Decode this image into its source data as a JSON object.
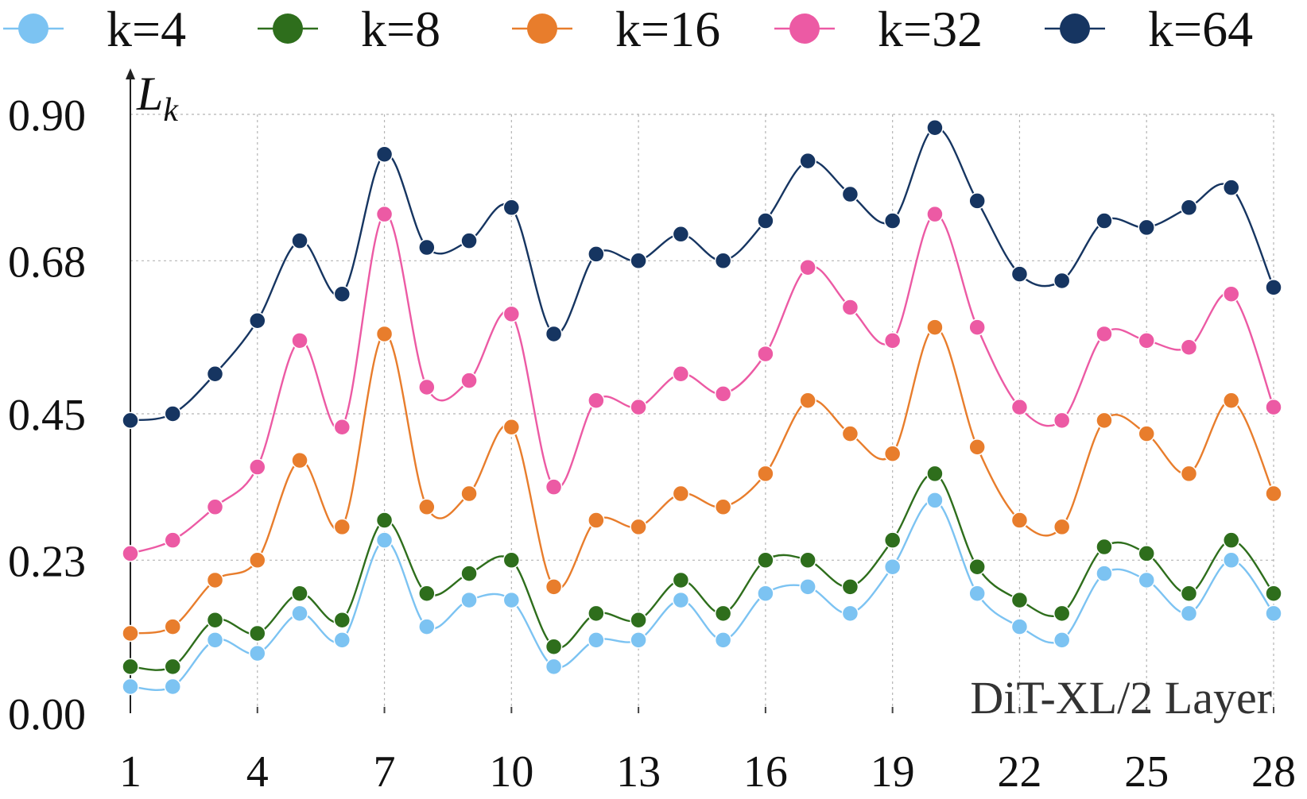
{
  "chart_data": {
    "type": "line",
    "title": "",
    "xlabel": "DiT-XL/2 Layer",
    "ylabel": "L",
    "ylabel_subscript": "k",
    "x": [
      1,
      2,
      3,
      4,
      5,
      6,
      7,
      8,
      9,
      10,
      11,
      12,
      13,
      14,
      15,
      16,
      17,
      18,
      19,
      20,
      21,
      22,
      23,
      24,
      25,
      26,
      27,
      28
    ],
    "x_ticks": [
      "1",
      "4",
      "7",
      "10",
      "13",
      "16",
      "19",
      "22",
      "25",
      "28"
    ],
    "y_ticks": [
      "0.00",
      "0.23",
      "0.45",
      "0.68",
      "0.90"
    ],
    "xlim": [
      1,
      28
    ],
    "ylim": [
      0,
      0.9
    ],
    "grid": true,
    "legend_position": "top",
    "series": [
      {
        "name": "k=4",
        "color": "#7cc3f2",
        "values": [
          0.04,
          0.04,
          0.11,
          0.09,
          0.15,
          0.11,
          0.26,
          0.13,
          0.17,
          0.17,
          0.07,
          0.11,
          0.11,
          0.17,
          0.11,
          0.18,
          0.19,
          0.15,
          0.22,
          0.32,
          0.18,
          0.13,
          0.11,
          0.21,
          0.2,
          0.15,
          0.23,
          0.15
        ]
      },
      {
        "name": "k=8",
        "color": "#2e6e1c",
        "values": [
          0.07,
          0.07,
          0.14,
          0.12,
          0.18,
          0.14,
          0.29,
          0.18,
          0.21,
          0.23,
          0.1,
          0.15,
          0.14,
          0.2,
          0.15,
          0.23,
          0.23,
          0.19,
          0.26,
          0.36,
          0.22,
          0.17,
          0.15,
          0.25,
          0.24,
          0.18,
          0.26,
          0.18
        ]
      },
      {
        "name": "k=16",
        "color": "#e87d2c",
        "values": [
          0.12,
          0.13,
          0.2,
          0.23,
          0.38,
          0.28,
          0.57,
          0.31,
          0.33,
          0.43,
          0.19,
          0.29,
          0.28,
          0.33,
          0.31,
          0.36,
          0.47,
          0.42,
          0.39,
          0.58,
          0.4,
          0.29,
          0.28,
          0.44,
          0.42,
          0.36,
          0.47,
          0.33
        ]
      },
      {
        "name": "k=32",
        "color": "#ec5aa4",
        "values": [
          0.24,
          0.26,
          0.31,
          0.37,
          0.56,
          0.43,
          0.75,
          0.49,
          0.5,
          0.6,
          0.34,
          0.47,
          0.46,
          0.51,
          0.48,
          0.54,
          0.67,
          0.61,
          0.56,
          0.75,
          0.58,
          0.46,
          0.44,
          0.57,
          0.56,
          0.55,
          0.63,
          0.46
        ]
      },
      {
        "name": "k=64",
        "color": "#163561",
        "values": [
          0.44,
          0.45,
          0.51,
          0.59,
          0.71,
          0.63,
          0.84,
          0.7,
          0.71,
          0.76,
          0.57,
          0.69,
          0.68,
          0.72,
          0.68,
          0.74,
          0.83,
          0.78,
          0.74,
          0.88,
          0.77,
          0.66,
          0.65,
          0.74,
          0.73,
          0.76,
          0.79,
          0.64
        ]
      }
    ]
  }
}
